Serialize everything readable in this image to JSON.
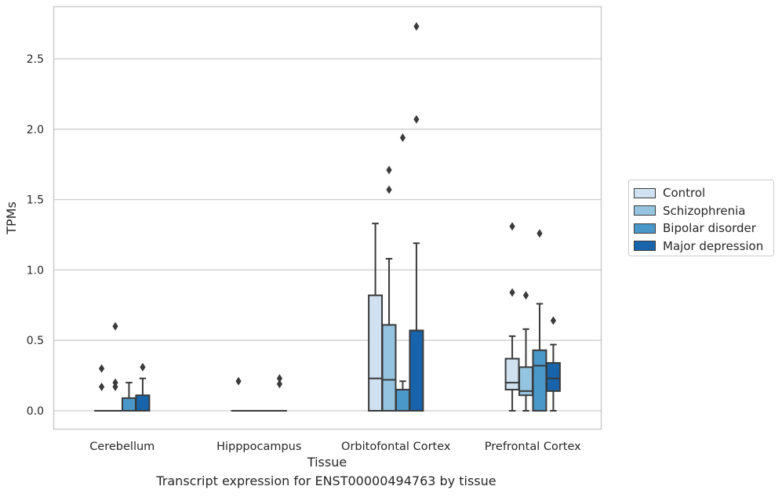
{
  "chart_data": {
    "type": "box",
    "xlabel": "Tissue",
    "ylabel": "TPMs",
    "caption": "Transcript expression for ENST00000494763 by tissue",
    "ylim": [
      -0.13,
      2.88
    ],
    "yticks": [
      0.0,
      0.5,
      1.0,
      1.5,
      2.0,
      2.5
    ],
    "ytick_labels": [
      "0.0",
      "0.5",
      "1.0",
      "1.5",
      "2.0",
      "2.5"
    ],
    "grid": "horizontal",
    "legend_position": "right",
    "categories": [
      "Cerebellum",
      "Hipppocampus",
      "Orbitofontal Cortex",
      "Prefrontal Cortex"
    ],
    "series": [
      {
        "name": "Control",
        "color": "#d0e1f2",
        "boxes": [
          {
            "q1": 0,
            "median": 0,
            "q3": 0,
            "whisker_low": 0,
            "whisker_high": 0,
            "outliers": [
              0.3,
              0.17
            ]
          },
          {
            "q1": 0,
            "median": 0,
            "q3": 0,
            "whisker_low": 0,
            "whisker_high": 0,
            "outliers": [
              0.21
            ]
          },
          {
            "q1": 0,
            "median": 0.23,
            "q3": 0.82,
            "whisker_low": 0,
            "whisker_high": 1.33,
            "outliers": []
          },
          {
            "q1": 0.15,
            "median": 0.2,
            "q3": 0.37,
            "whisker_low": 0,
            "whisker_high": 0.53,
            "outliers": [
              1.31,
              0.84
            ]
          }
        ]
      },
      {
        "name": "Schizophrenia",
        "color": "#94c4df",
        "boxes": [
          {
            "q1": 0,
            "median": 0,
            "q3": 0,
            "whisker_low": 0,
            "whisker_high": 0,
            "outliers": [
              0.6,
              0.2,
              0.17
            ]
          },
          {
            "q1": 0,
            "median": 0,
            "q3": 0,
            "whisker_low": 0,
            "whisker_high": 0,
            "outliers": []
          },
          {
            "q1": 0,
            "median": 0.22,
            "q3": 0.61,
            "whisker_low": 0,
            "whisker_high": 1.08,
            "outliers": [
              1.71,
              1.57
            ]
          },
          {
            "q1": 0.11,
            "median": 0.14,
            "q3": 0.31,
            "whisker_low": 0,
            "whisker_high": 0.58,
            "outliers": [
              0.82
            ]
          }
        ]
      },
      {
        "name": "Bipolar disorder",
        "color": "#4a98c9",
        "boxes": [
          {
            "q1": 0,
            "median": 0,
            "q3": 0.09,
            "whisker_low": 0,
            "whisker_high": 0.2,
            "outliers": []
          },
          {
            "q1": 0,
            "median": 0,
            "q3": 0,
            "whisker_low": 0,
            "whisker_high": 0,
            "outliers": []
          },
          {
            "q1": 0,
            "median": 0.15,
            "q3": 0.15,
            "whisker_low": 0,
            "whisker_high": 0.21,
            "outliers": [
              1.94
            ]
          },
          {
            "q1": 0,
            "median": 0.32,
            "q3": 0.43,
            "whisker_low": 0,
            "whisker_high": 0.76,
            "outliers": [
              1.26
            ]
          }
        ]
      },
      {
        "name": "Major depression",
        "color": "#1764ab",
        "boxes": [
          {
            "q1": 0,
            "median": 0,
            "q3": 0.11,
            "whisker_low": 0,
            "whisker_high": 0.23,
            "outliers": [
              0.31
            ]
          },
          {
            "q1": 0,
            "median": 0,
            "q3": 0,
            "whisker_low": 0,
            "whisker_high": 0,
            "outliers": [
              0.23,
              0.19
            ]
          },
          {
            "q1": 0,
            "median": 0.57,
            "q3": 0.57,
            "whisker_low": 0,
            "whisker_high": 1.19,
            "outliers": [
              2.73,
              2.07
            ]
          },
          {
            "q1": 0.14,
            "median": 0.23,
            "q3": 0.34,
            "whisker_low": 0,
            "whisker_high": 0.47,
            "outliers": [
              0.64
            ]
          }
        ]
      }
    ]
  }
}
